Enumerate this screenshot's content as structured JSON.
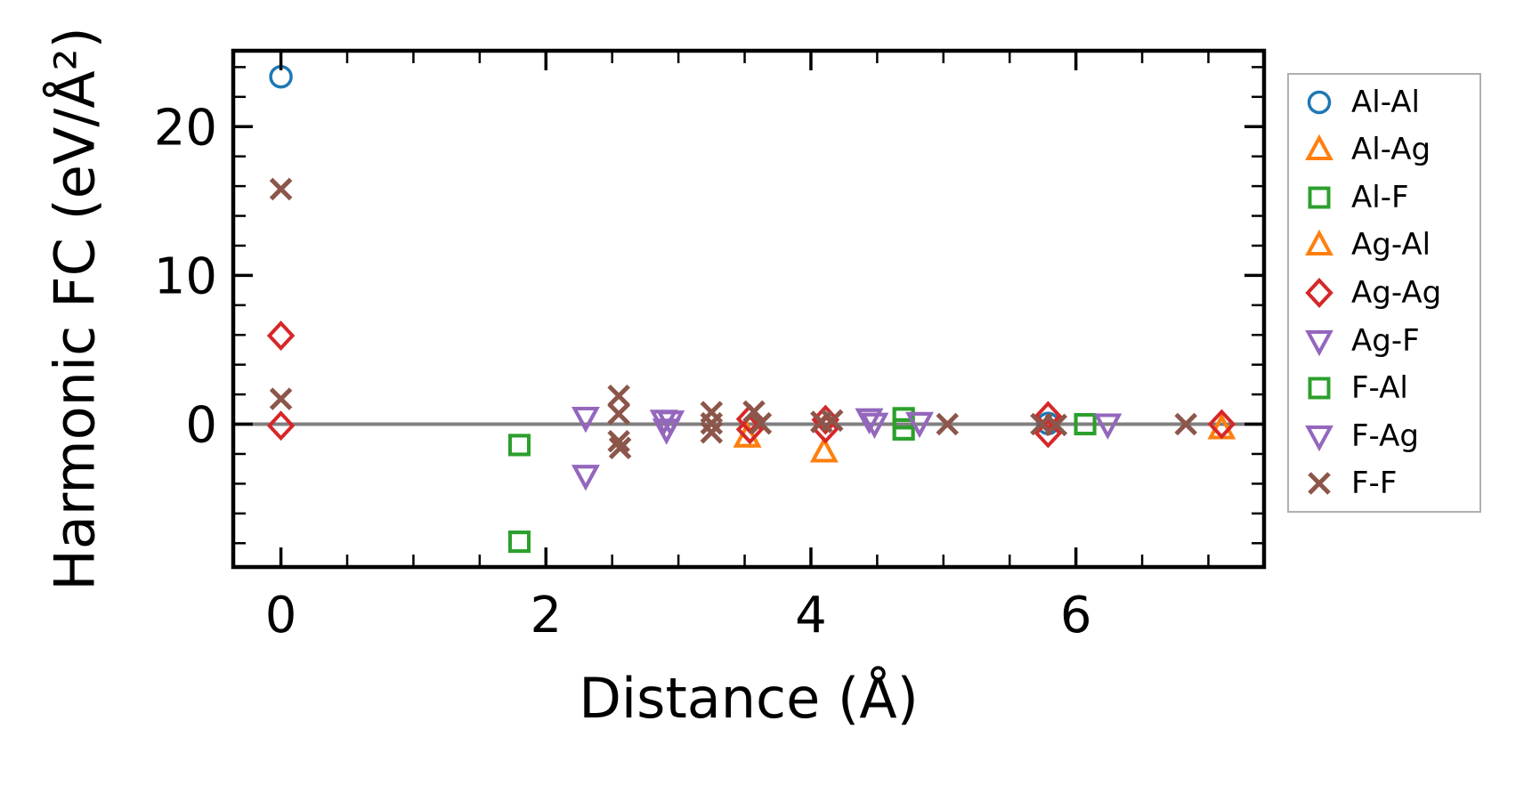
{
  "figure": {
    "background": "#ffffff",
    "text_color": "#000000",
    "spine_color": "#000000",
    "zero_line_color": "#808080",
    "legend_border_color": "#b0b0b0"
  },
  "chart_data": {
    "type": "scatter",
    "title": "",
    "xlabel": "Distance (Å)",
    "ylabel": "Harmonic FC (eV/Å²)",
    "xlim": [
      -0.36,
      7.42
    ],
    "ylim": [
      -9.6,
      25.1
    ],
    "x_major_ticks": [
      0,
      2,
      4,
      6
    ],
    "x_major_tick_labels": [
      "0",
      "2",
      "4",
      "6"
    ],
    "x_minor_ticks": [
      0.5,
      1.0,
      1.5,
      2.5,
      3.0,
      3.5,
      4.5,
      5.0,
      5.5,
      6.5,
      7.0
    ],
    "y_major_ticks": [
      0,
      10,
      20
    ],
    "y_major_tick_labels": [
      "0",
      "10",
      "20"
    ],
    "y_minor_ticks": [
      -8,
      -6,
      -4,
      -2,
      2,
      4,
      6,
      8,
      12,
      14,
      16,
      18,
      22,
      24
    ],
    "grid": false,
    "zero_line_y": 0,
    "legend_position": "outside-right",
    "series": [
      {
        "name": "Al-Al",
        "marker": "circle",
        "color": "#1f77b4",
        "points": [
          [
            0,
            23.35
          ],
          [
            5.79,
            0.05
          ]
        ]
      },
      {
        "name": "Al-Ag",
        "marker": "triangle-up",
        "color": "#ff7f0e",
        "points": [
          [
            3.52,
            -0.85
          ],
          [
            4.1,
            -1.85
          ],
          [
            7.1,
            -0.3
          ]
        ]
      },
      {
        "name": "Al-F",
        "marker": "square",
        "color": "#2ca02c",
        "points": [
          [
            1.8,
            -1.4
          ],
          [
            1.8,
            -7.9
          ],
          [
            4.7,
            0.4
          ],
          [
            4.7,
            -0.35
          ],
          [
            6.07,
            0.0
          ]
        ]
      },
      {
        "name": "Ag-Al",
        "marker": "triangle-up",
        "color": "#ff7f0e",
        "points": [
          [
            3.52,
            -0.85
          ],
          [
            4.1,
            -1.85
          ],
          [
            7.1,
            -0.3
          ]
        ]
      },
      {
        "name": "Ag-Ag",
        "marker": "diamond",
        "color": "#d62728",
        "points": [
          [
            0,
            5.95
          ],
          [
            0,
            -0.1
          ],
          [
            3.54,
            0.35
          ],
          [
            3.54,
            -0.35
          ],
          [
            4.11,
            0.3
          ],
          [
            4.11,
            -0.3
          ],
          [
            5.79,
            0.55
          ],
          [
            5.79,
            -0.6
          ],
          [
            7.1,
            0.0
          ]
        ]
      },
      {
        "name": "Ag-F",
        "marker": "triangle-down",
        "color": "#9467bd",
        "points": [
          [
            2.3,
            0.45
          ],
          [
            2.3,
            -3.45
          ],
          [
            2.89,
            0.25
          ],
          [
            2.94,
            0.2
          ],
          [
            2.91,
            -0.35
          ],
          [
            4.44,
            0.35
          ],
          [
            4.48,
            0.05
          ],
          [
            4.82,
            0.1
          ],
          [
            6.24,
            0.0
          ]
        ]
      },
      {
        "name": "F-Al",
        "marker": "square",
        "color": "#2ca02c",
        "points": [
          [
            1.8,
            -1.4
          ],
          [
            1.8,
            -7.9
          ],
          [
            4.7,
            0.4
          ],
          [
            4.7,
            -0.35
          ],
          [
            6.07,
            0.0
          ]
        ]
      },
      {
        "name": "F-Ag",
        "marker": "triangle-down",
        "color": "#9467bd",
        "points": [
          [
            2.3,
            0.45
          ],
          [
            2.3,
            -3.45
          ],
          [
            2.89,
            0.25
          ],
          [
            2.94,
            0.2
          ],
          [
            2.91,
            -0.35
          ],
          [
            4.44,
            0.35
          ],
          [
            4.48,
            0.05
          ],
          [
            4.82,
            0.1
          ],
          [
            6.24,
            0.0
          ]
        ]
      },
      {
        "name": "F-F",
        "marker": "x",
        "color": "#8c564b",
        "points": [
          [
            0,
            15.8
          ],
          [
            0,
            1.7
          ],
          [
            2.55,
            1.9
          ],
          [
            2.55,
            0.7
          ],
          [
            2.55,
            -1.15
          ],
          [
            2.56,
            -1.6
          ],
          [
            3.25,
            0.8
          ],
          [
            3.25,
            0.05
          ],
          [
            3.25,
            -0.55
          ],
          [
            3.57,
            0.85
          ],
          [
            3.62,
            0.05
          ],
          [
            4.08,
            0.15
          ],
          [
            4.16,
            0.25
          ],
          [
            5.03,
            0.0
          ],
          [
            5.74,
            0.0
          ],
          [
            5.85,
            -0.05
          ],
          [
            6.83,
            0.0
          ]
        ]
      }
    ]
  },
  "legend": {
    "items": [
      "Al-Al",
      "Al-Ag",
      "Al-F",
      "Ag-Al",
      "Ag-Ag",
      "Ag-F",
      "F-Al",
      "F-Ag",
      "F-F"
    ]
  }
}
